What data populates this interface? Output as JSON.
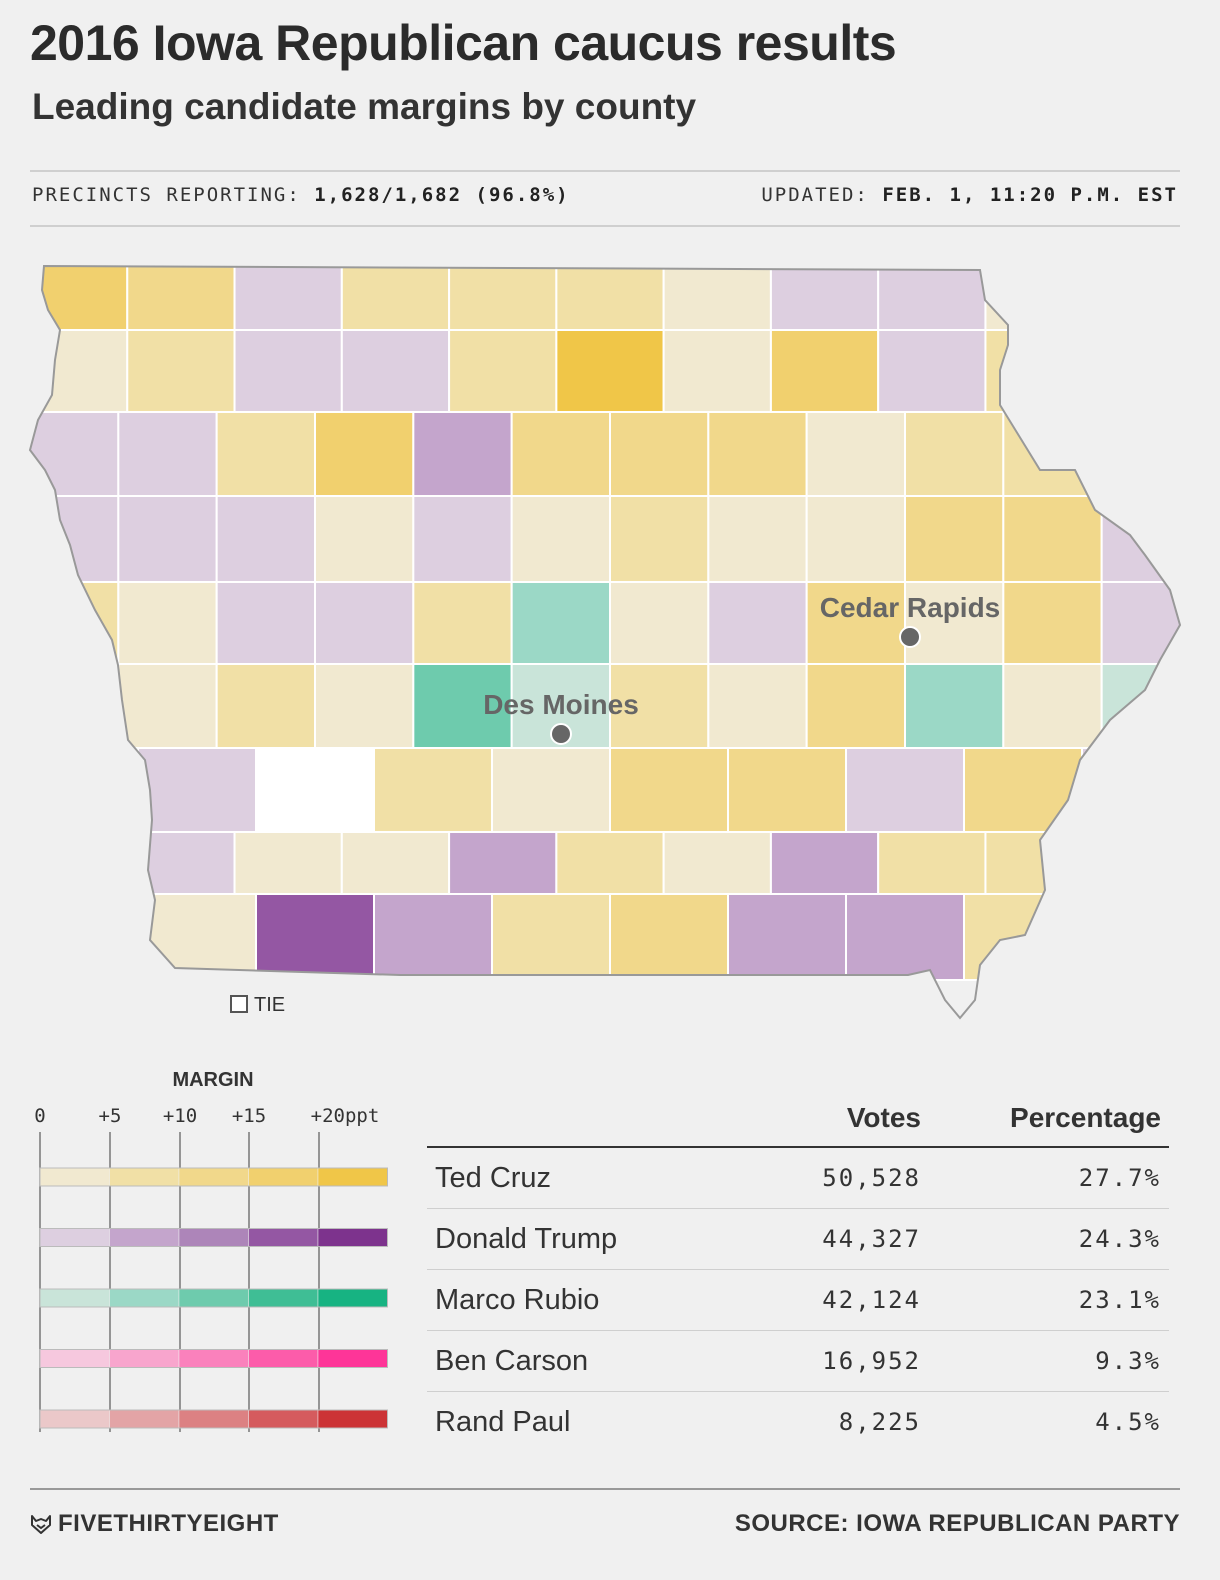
{
  "title": "2016 Iowa Republican caucus results",
  "subtitle": "Leading candidate margins by county",
  "precincts": {
    "label": "PRECINCTS REPORTING:",
    "value": "1,628/1,682 (96.8%)"
  },
  "updated": {
    "label": "UPDATED:",
    "value": "FEB. 1, 11:20 P.M. EST"
  },
  "map": {
    "cities": [
      "Cedar Rapids",
      "Des Moines"
    ],
    "tie_label": "TIE"
  },
  "legend": {
    "title": "MARGIN",
    "ticks": [
      "0",
      "+5",
      "+10",
      "+15",
      "+20ppt"
    ],
    "scales": [
      {
        "candidate": "Ted Cruz",
        "colors": [
          "#f1e9d0",
          "#f1e0a6",
          "#f1d88b",
          "#f1d06e",
          "#f0c648"
        ]
      },
      {
        "candidate": "Donald Trump",
        "colors": [
          "#ddcfe0",
          "#c4a5cc",
          "#ad85b9",
          "#9457a3",
          "#7d338d"
        ]
      },
      {
        "candidate": "Marco Rubio",
        "colors": [
          "#c9e4d9",
          "#9bd8c6",
          "#6ecbad",
          "#3fbe95",
          "#17b382"
        ]
      },
      {
        "candidate": "Ben Carson",
        "colors": [
          "#f6c8de",
          "#f8a5cd",
          "#fa81bc",
          "#fc5caa",
          "#fe3598"
        ]
      },
      {
        "candidate": "Rand Paul",
        "colors": [
          "#ebc8c9",
          "#e3a4a6",
          "#dc8183",
          "#d55b5e",
          "#cc3336"
        ]
      }
    ]
  },
  "results": {
    "headers": {
      "votes": "Votes",
      "percentage": "Percentage"
    },
    "rows": [
      {
        "name": "Ted Cruz",
        "votes": "50,528",
        "pct": "27.7%"
      },
      {
        "name": "Donald Trump",
        "votes": "44,327",
        "pct": "24.3%"
      },
      {
        "name": "Marco Rubio",
        "votes": "42,124",
        "pct": "23.1%"
      },
      {
        "name": "Ben Carson",
        "votes": "16,952",
        "pct": "9.3%"
      },
      {
        "name": "Rand Paul",
        "votes": "8,225",
        "pct": "4.5%"
      }
    ]
  },
  "footer": {
    "brand": "FIVETHIRTYEIGHT",
    "source": "SOURCE: IOWA REPUBLICAN PARTY"
  },
  "county_grid": {
    "palette": {
      "c1": "#f1e9d0",
      "c2": "#f1e0a6",
      "c3": "#f1d88b",
      "c4": "#f1d06e",
      "c5": "#f0c648",
      "t1": "#ddcfe0",
      "t2": "#c4a5cc",
      "t3": "#ad85b9",
      "t4": "#9457a3",
      "t5": "#7d338d",
      "r1": "#c9e4d9",
      "r2": "#9bd8c6",
      "r3": "#6ecbad",
      "tie": "#ffffff"
    },
    "rows": [
      [
        "c4",
        "c3",
        "t1",
        "c2",
        "c2",
        "c2",
        "c1",
        "t1",
        "t1",
        "c1",
        "t1"
      ],
      [
        "c1",
        "c2",
        "t1",
        "t1",
        "c2",
        "c5",
        "c1",
        "c4",
        "t1",
        "c2",
        "c2"
      ],
      [
        "t1",
        "t1",
        "c2",
        "c4",
        "t2",
        "c3",
        "c3",
        "c3",
        "c1",
        "c2",
        "c2",
        "t1"
      ],
      [
        "t1",
        "t1",
        "t1",
        "c1",
        "t1",
        "c1",
        "c2",
        "c1",
        "c1",
        "c3",
        "c3",
        "t1"
      ],
      [
        "c2",
        "c1",
        "t1",
        "t1",
        "c2",
        "r2",
        "c1",
        "t1",
        "c3",
        "c1",
        "c3",
        "t1"
      ],
      [
        "t1",
        "c1",
        "c2",
        "c1",
        "r3",
        "r1",
        "c2",
        "c1",
        "c3",
        "r2",
        "c1",
        "r1"
      ],
      [
        "t3",
        "t1",
        "tie",
        "c2",
        "c1",
        "c3",
        "c3",
        "t1",
        "c3",
        "t1"
      ],
      [
        "t1",
        "t1",
        "c1",
        "c1",
        "t2",
        "c2",
        "c1",
        "t2",
        "c2",
        "c2",
        "t1"
      ],
      [
        "t5",
        "c1",
        "t4",
        "t2",
        "c2",
        "c3",
        "t2",
        "t2",
        "c2",
        "t2"
      ]
    ]
  }
}
